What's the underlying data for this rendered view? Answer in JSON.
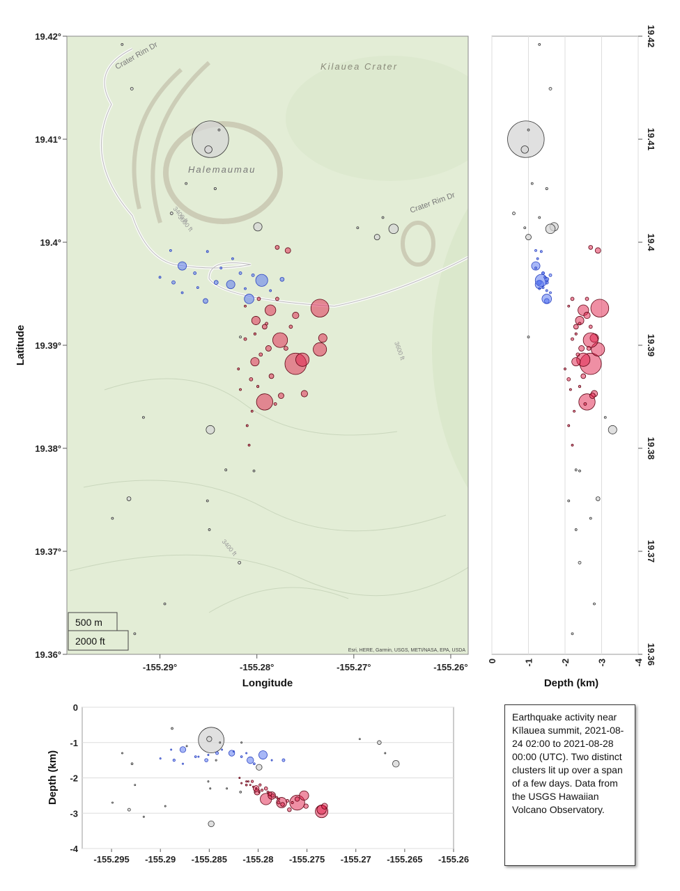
{
  "chart_data": {
    "type": "scatter",
    "series": [
      {
        "color": "#d6d6d6",
        "lon": [
          -155.2848,
          -155.285,
          -155.2839,
          -155.2929,
          -155.2873,
          -155.2843,
          -155.2888,
          -155.2799,
          -155.2659,
          -155.2676,
          -155.267,
          -155.2848,
          -155.2832,
          -155.2932,
          -155.2818,
          -155.2895,
          -155.2917,
          -155.2851,
          -155.2849,
          -155.2803,
          -155.2817,
          -155.2926,
          -155.2949,
          -155.2939,
          -155.2696
        ],
        "lat": [
          19.41,
          19.409,
          19.4109,
          19.4149,
          19.4057,
          19.4052,
          19.4028,
          19.4015,
          19.4013,
          19.4005,
          19.4024,
          19.3818,
          19.3779,
          19.3751,
          19.3689,
          19.3649,
          19.383,
          19.3749,
          19.3721,
          19.3778,
          19.3908,
          19.362,
          19.3732,
          19.4192,
          19.4014
        ],
        "depth": [
          -0.93,
          -0.9,
          -1.0,
          -1.6,
          -1.1,
          -1.5,
          -0.6,
          -1.7,
          -1.6,
          -1.0,
          -1.3,
          -3.3,
          -2.3,
          -2.9,
          -2.4,
          -2.8,
          -3.1,
          -2.1,
          -2.3,
          -2.4,
          -1.0,
          -2.2,
          -2.7,
          -1.3,
          -0.9
        ],
        "mag": [
          3.5,
          1.8,
          1.0,
          1.2,
          1.0,
          1.1,
          1.2,
          1.9,
          2.0,
          1.6,
          0.8,
          1.9,
          1.0,
          1.4,
          1.2,
          1.0,
          0.8,
          0.8,
          0.7,
          0.8,
          1.0,
          0.6,
          0.7,
          0.5,
          0.6
        ]
      },
      {
        "color": "#5070f0",
        "lon": [
          -155.2877,
          -155.2886,
          -155.2864,
          -155.2853,
          -155.2842,
          -155.2827,
          -155.2837,
          -155.2817,
          -155.2808,
          -155.2795,
          -155.2774,
          -155.2889,
          -155.2861,
          -155.2825,
          -155.2877,
          -155.2851,
          -155.2812,
          -155.2804,
          -155.29,
          -155.2786
        ],
        "lat": [
          19.3977,
          19.3961,
          19.397,
          19.3943,
          19.3961,
          19.3959,
          19.3975,
          19.397,
          19.3945,
          19.3963,
          19.3964,
          19.3992,
          19.3956,
          19.3984,
          19.3951,
          19.3991,
          19.3955,
          19.3968,
          19.3966,
          19.3953
        ],
        "depth": [
          -1.2,
          -1.5,
          -1.4,
          -1.5,
          -1.3,
          -1.3,
          -1.2,
          -1.4,
          -1.5,
          -1.35,
          -1.5,
          -1.2,
          -1.4,
          -1.25,
          -1.6,
          -1.35,
          -1.3,
          -1.6,
          -1.45,
          -1.5
        ],
        "mag": [
          1.9,
          1.3,
          1.2,
          1.5,
          1.4,
          1.9,
          1.0,
          1.2,
          2.0,
          2.2,
          1.4,
          0.7,
          1.0,
          0.9,
          0.8,
          0.7,
          1.0,
          1.2,
          0.8,
          1.0
        ]
      },
      {
        "color": "#e0204a",
        "lon": [
          -155.2735,
          -155.276,
          -155.2753,
          -155.2735,
          -155.2732,
          -155.2792,
          -155.2776,
          -155.2786,
          -155.2801,
          -155.2802,
          -155.2751,
          -155.276,
          -155.2775,
          -155.2768,
          -155.2779,
          -155.2792,
          -155.2812,
          -155.2806,
          -155.2788,
          -155.2798,
          -155.2785,
          -155.2796,
          -155.2817,
          -155.2805,
          -155.2808,
          -155.281,
          -155.2779,
          -155.277,
          -155.2802,
          -155.279,
          -155.2819,
          -155.2781,
          -155.2799,
          -155.2812,
          -155.2765
        ],
        "lat": [
          19.3936,
          19.3882,
          19.3886,
          19.3896,
          19.3907,
          19.3845,
          19.3905,
          19.3934,
          19.3924,
          19.3884,
          19.3853,
          19.3929,
          19.3851,
          19.3992,
          19.3995,
          19.3918,
          19.3906,
          19.3867,
          19.3897,
          19.3945,
          19.387,
          19.3891,
          19.3857,
          19.3836,
          19.3803,
          19.3822,
          19.3945,
          19.3897,
          19.3911,
          19.3921,
          19.3877,
          19.3843,
          19.386,
          19.3938,
          19.3918
        ],
        "depth": [
          -2.95,
          -2.7,
          -2.5,
          -2.9,
          -2.8,
          -2.6,
          -2.7,
          -2.5,
          -2.4,
          -2.3,
          -2.8,
          -2.6,
          -2.75,
          -2.9,
          -2.7,
          -2.3,
          -2.2,
          -2.1,
          -2.45,
          -2.2,
          -2.5,
          -2.35,
          -2.15,
          -2.25,
          -2.2,
          -2.1,
          -2.6,
          -2.65,
          -2.3,
          -2.4,
          -2.0,
          -2.55,
          -2.4,
          -2.1,
          -2.7
        ],
        "mag": [
          2.6,
          2.8,
          2.3,
          2.3,
          1.9,
          2.5,
          2.4,
          2.1,
          1.9,
          1.9,
          1.7,
          1.7,
          1.6,
          1.6,
          1.4,
          1.5,
          1.2,
          1.3,
          1.6,
          1.3,
          1.5,
          1.3,
          1.0,
          1.0,
          0.8,
          0.9,
          1.3,
          1.4,
          1.1,
          1.2,
          0.9,
          1.2,
          1.1,
          1.0,
          1.3
        ]
      }
    ],
    "map": {
      "xlabel": "Longitude",
      "ylabel": "Latitude",
      "xlim": [
        -155.2996,
        -155.2582
      ],
      "ylim": [
        19.36,
        19.42
      ],
      "xticks": [
        {
          "value": -155.29,
          "label": "-155.29°"
        },
        {
          "value": -155.28,
          "label": "-155.28°"
        },
        {
          "value": -155.27,
          "label": "-155.27°"
        },
        {
          "value": -155.26,
          "label": "-155.26°"
        }
      ],
      "yticks": [
        {
          "value": 19.36,
          "label": "19.36°"
        },
        {
          "value": 19.37,
          "label": "19.37°"
        },
        {
          "value": 19.38,
          "label": "19.38°"
        },
        {
          "value": 19.39,
          "label": "19.39°"
        },
        {
          "value": 19.4,
          "label": "19.4°"
        },
        {
          "value": 19.41,
          "label": "19.41°"
        },
        {
          "value": 19.42,
          "label": "19.42°"
        }
      ],
      "labels": [
        "Kilauea Crater",
        "Halemaumau",
        "Crater Rim Dr",
        "Crater Rim Dr",
        "3400 ft",
        "3600 ft",
        "3600 ft",
        "3400 ft"
      ],
      "scale": [
        "500 m",
        "2000 ft"
      ],
      "attribution": "Esri, HERE, Garmin, USGS, METI/NASA, EPA, USDA"
    },
    "depth_lat": {
      "xlabel": "Depth (km)",
      "xlim": [
        0,
        -4
      ],
      "ylim": [
        19.36,
        19.42
      ],
      "xticks": [
        0,
        -1,
        -2,
        -3,
        -4
      ],
      "yticks": [
        19.36,
        19.37,
        19.38,
        19.39,
        19.4,
        19.41,
        19.42
      ],
      "grid": true
    },
    "lon_depth": {
      "ylabel": "Depth (km)",
      "xlim": [
        -155.298,
        -155.26
      ],
      "ylim": [
        -4,
        0
      ],
      "xticks": [
        -155.295,
        -155.29,
        -155.285,
        -155.28,
        -155.275,
        -155.27,
        -155.265,
        -155.26
      ],
      "yticks": [
        0,
        -1,
        -2,
        -3,
        -4
      ],
      "grid": true
    },
    "caption": "Earthquake activity near Kīlauea summit, 2021-08-24 02:00 to 2021-08-28 00:00 (UTC). Two distinct clusters lit up over a span of a few days. Data from the USGS Hawaiian Volcano Observatory."
  }
}
